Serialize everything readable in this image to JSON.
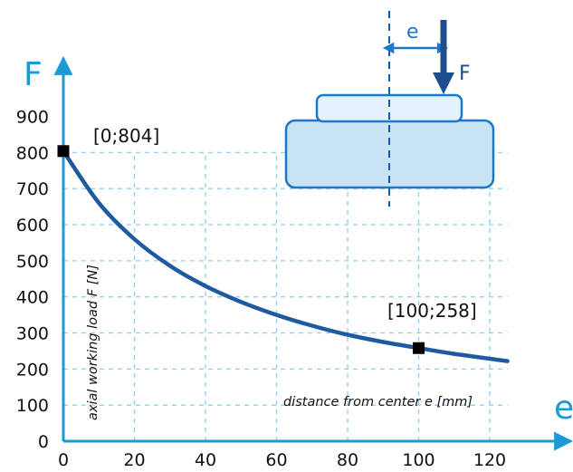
{
  "chart_data": {
    "type": "line",
    "x_axis_symbol": "e",
    "y_axis_symbol": "F",
    "xlabel": "distance from center e [mm]",
    "ylabel": "axial working load F [N]",
    "xlim": [
      0,
      125
    ],
    "ylim": [
      0,
      900
    ],
    "x_ticks": [
      0,
      20,
      40,
      60,
      80,
      100,
      120
    ],
    "y_ticks": [
      0,
      100,
      200,
      300,
      400,
      500,
      600,
      700,
      800,
      900
    ],
    "grid": true,
    "x_tick_labels": [
      "0",
      "20",
      "40",
      "60",
      "80",
      "100",
      "120"
    ],
    "y_tick_labels": [
      "0",
      "100",
      "200",
      "300",
      "400",
      "500",
      "600",
      "700",
      "800",
      "900"
    ],
    "series": [
      {
        "x": [
          0,
          10,
          20,
          30,
          40,
          50,
          60,
          70,
          80,
          90,
          100,
          110,
          125
        ],
        "y": [
          804,
          660,
          560,
          486,
          430,
          386,
          350,
          320,
          295,
          275,
          258,
          242,
          222
        ]
      }
    ],
    "annotations": [
      {
        "label": "[0;804]",
        "x": 0,
        "y": 804
      },
      {
        "label": "[100;258]",
        "x": 100,
        "y": 258
      }
    ],
    "colors": {
      "curve": "#1e5aa0",
      "axis": "#1c9ad6",
      "grid": "#8fd0ec",
      "marker": "#000000"
    }
  },
  "diagram": {
    "offset_label": "e",
    "force_label": "F",
    "colors": {
      "outline": "#1c78c8",
      "block_fill": "#c8e4f4",
      "top_fill": "#e4f3fb",
      "arrow": "#1a4e8c"
    }
  }
}
